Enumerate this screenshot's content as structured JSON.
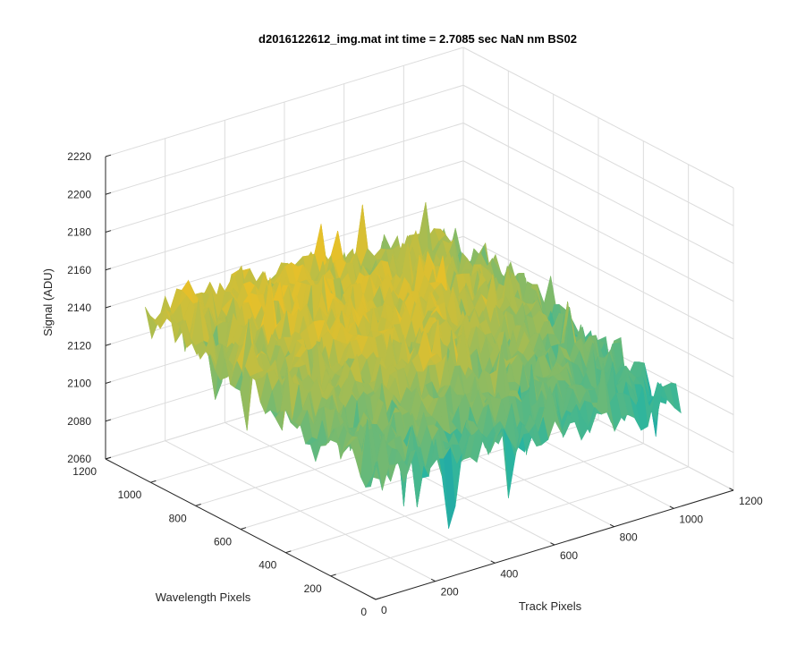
{
  "chart_data": {
    "type": "surface",
    "title": "d2016122612_img.mat int time = 2.7085 sec  NaN nm BS02",
    "xlabel": "Track Pixels",
    "ylabel": "Wavelength Pixels",
    "zlabel": "Signal (ADU)",
    "x_ticks": [
      0,
      200,
      400,
      600,
      800,
      1000,
      1200
    ],
    "y_ticks": [
      0,
      200,
      400,
      600,
      800,
      1000,
      1200
    ],
    "z_ticks": [
      2060,
      2080,
      2100,
      2120,
      2140,
      2160,
      2180,
      2200,
      2220
    ],
    "xlim": [
      0,
      1200
    ],
    "ylim": [
      0,
      1200
    ],
    "zlim": [
      2060,
      2220
    ],
    "grid": true,
    "colormap": "parula",
    "surface_extent": {
      "x": [
        0,
        1024
      ],
      "y": [
        0,
        1024
      ]
    },
    "z_mean_at_corners": {
      "x0_y0": 2125,
      "x0_y1024": 2150,
      "x1024_y0": 2115,
      "x1024_y1024": 2140
    },
    "z_center_mean": 2150,
    "z_noise_amplitude": 20,
    "z_observed_range": [
      2070,
      2200
    ],
    "colors": {
      "low": "#0072BD",
      "mid": "#2AB5A0",
      "high": "#E6C02A",
      "peak": "#F2A230"
    }
  }
}
